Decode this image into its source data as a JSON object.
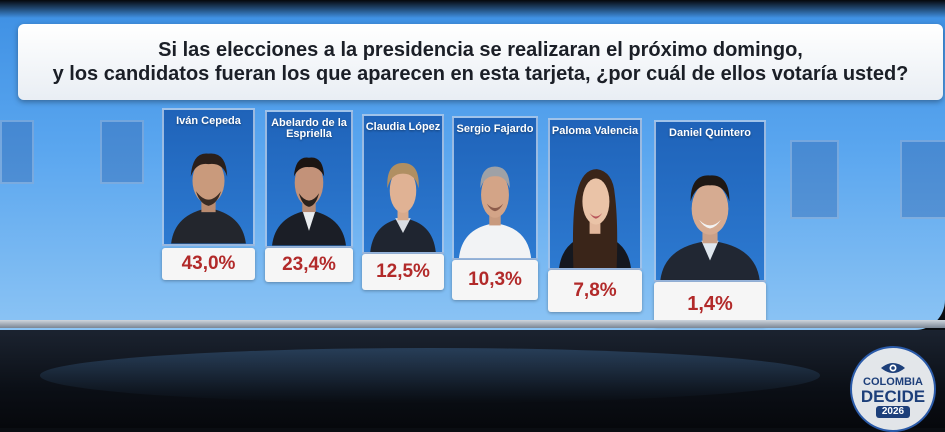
{
  "question": {
    "line1": "Si las elecciones a la presidencia se realizaran el próximo domingo,",
    "line2": "y los candidatos fueran los que aparecen en esta tarjeta, ¿por cuál de ellos votaría usted?"
  },
  "candidates": [
    {
      "name": "Iván Cepeda",
      "percent": "43,0%",
      "value": 43.0
    },
    {
      "name": "Abelardo de la Espriella",
      "percent": "23,4%",
      "value": 23.4
    },
    {
      "name": "Claudia López",
      "percent": "12,5%",
      "value": 12.5
    },
    {
      "name": "Sergio Fajardo",
      "percent": "10,3%",
      "value": 10.3
    },
    {
      "name": "Paloma Valencia",
      "percent": "7,8%",
      "value": 7.8
    },
    {
      "name": "Daniel Quintero",
      "percent": "1,4%",
      "value": 1.4
    }
  ],
  "logo": {
    "line1": "COLOMBIA",
    "line2": "DECIDE",
    "line3": "2026"
  },
  "colors": {
    "percent_text": "#b22a2a",
    "panel_blue": "#2d7ad1",
    "logo_blue": "#1d3f7a"
  }
}
